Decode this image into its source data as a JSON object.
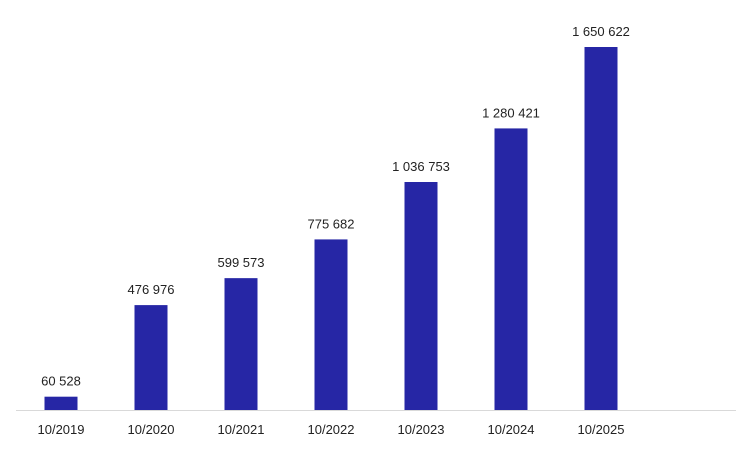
{
  "chart_data": {
    "type": "bar",
    "title": "",
    "xlabel": "",
    "ylabel": "",
    "categories": [
      "10/2019",
      "10/2020",
      "10/2021",
      "10/2022",
      "10/2023",
      "10/2024",
      "10/2025"
    ],
    "values": [
      60528,
      476976,
      599573,
      775682,
      1036753,
      1280421,
      1650622
    ],
    "value_labels": [
      "60 528",
      "476 976",
      "599 573",
      "775 682",
      "1 036 753",
      "1 280 421",
      "1 650 622"
    ],
    "ylim": [
      0,
      1650622
    ],
    "grid": false,
    "legend": "none",
    "bar_color": "#2626a5",
    "axis_color": "#d9d9d9"
  }
}
